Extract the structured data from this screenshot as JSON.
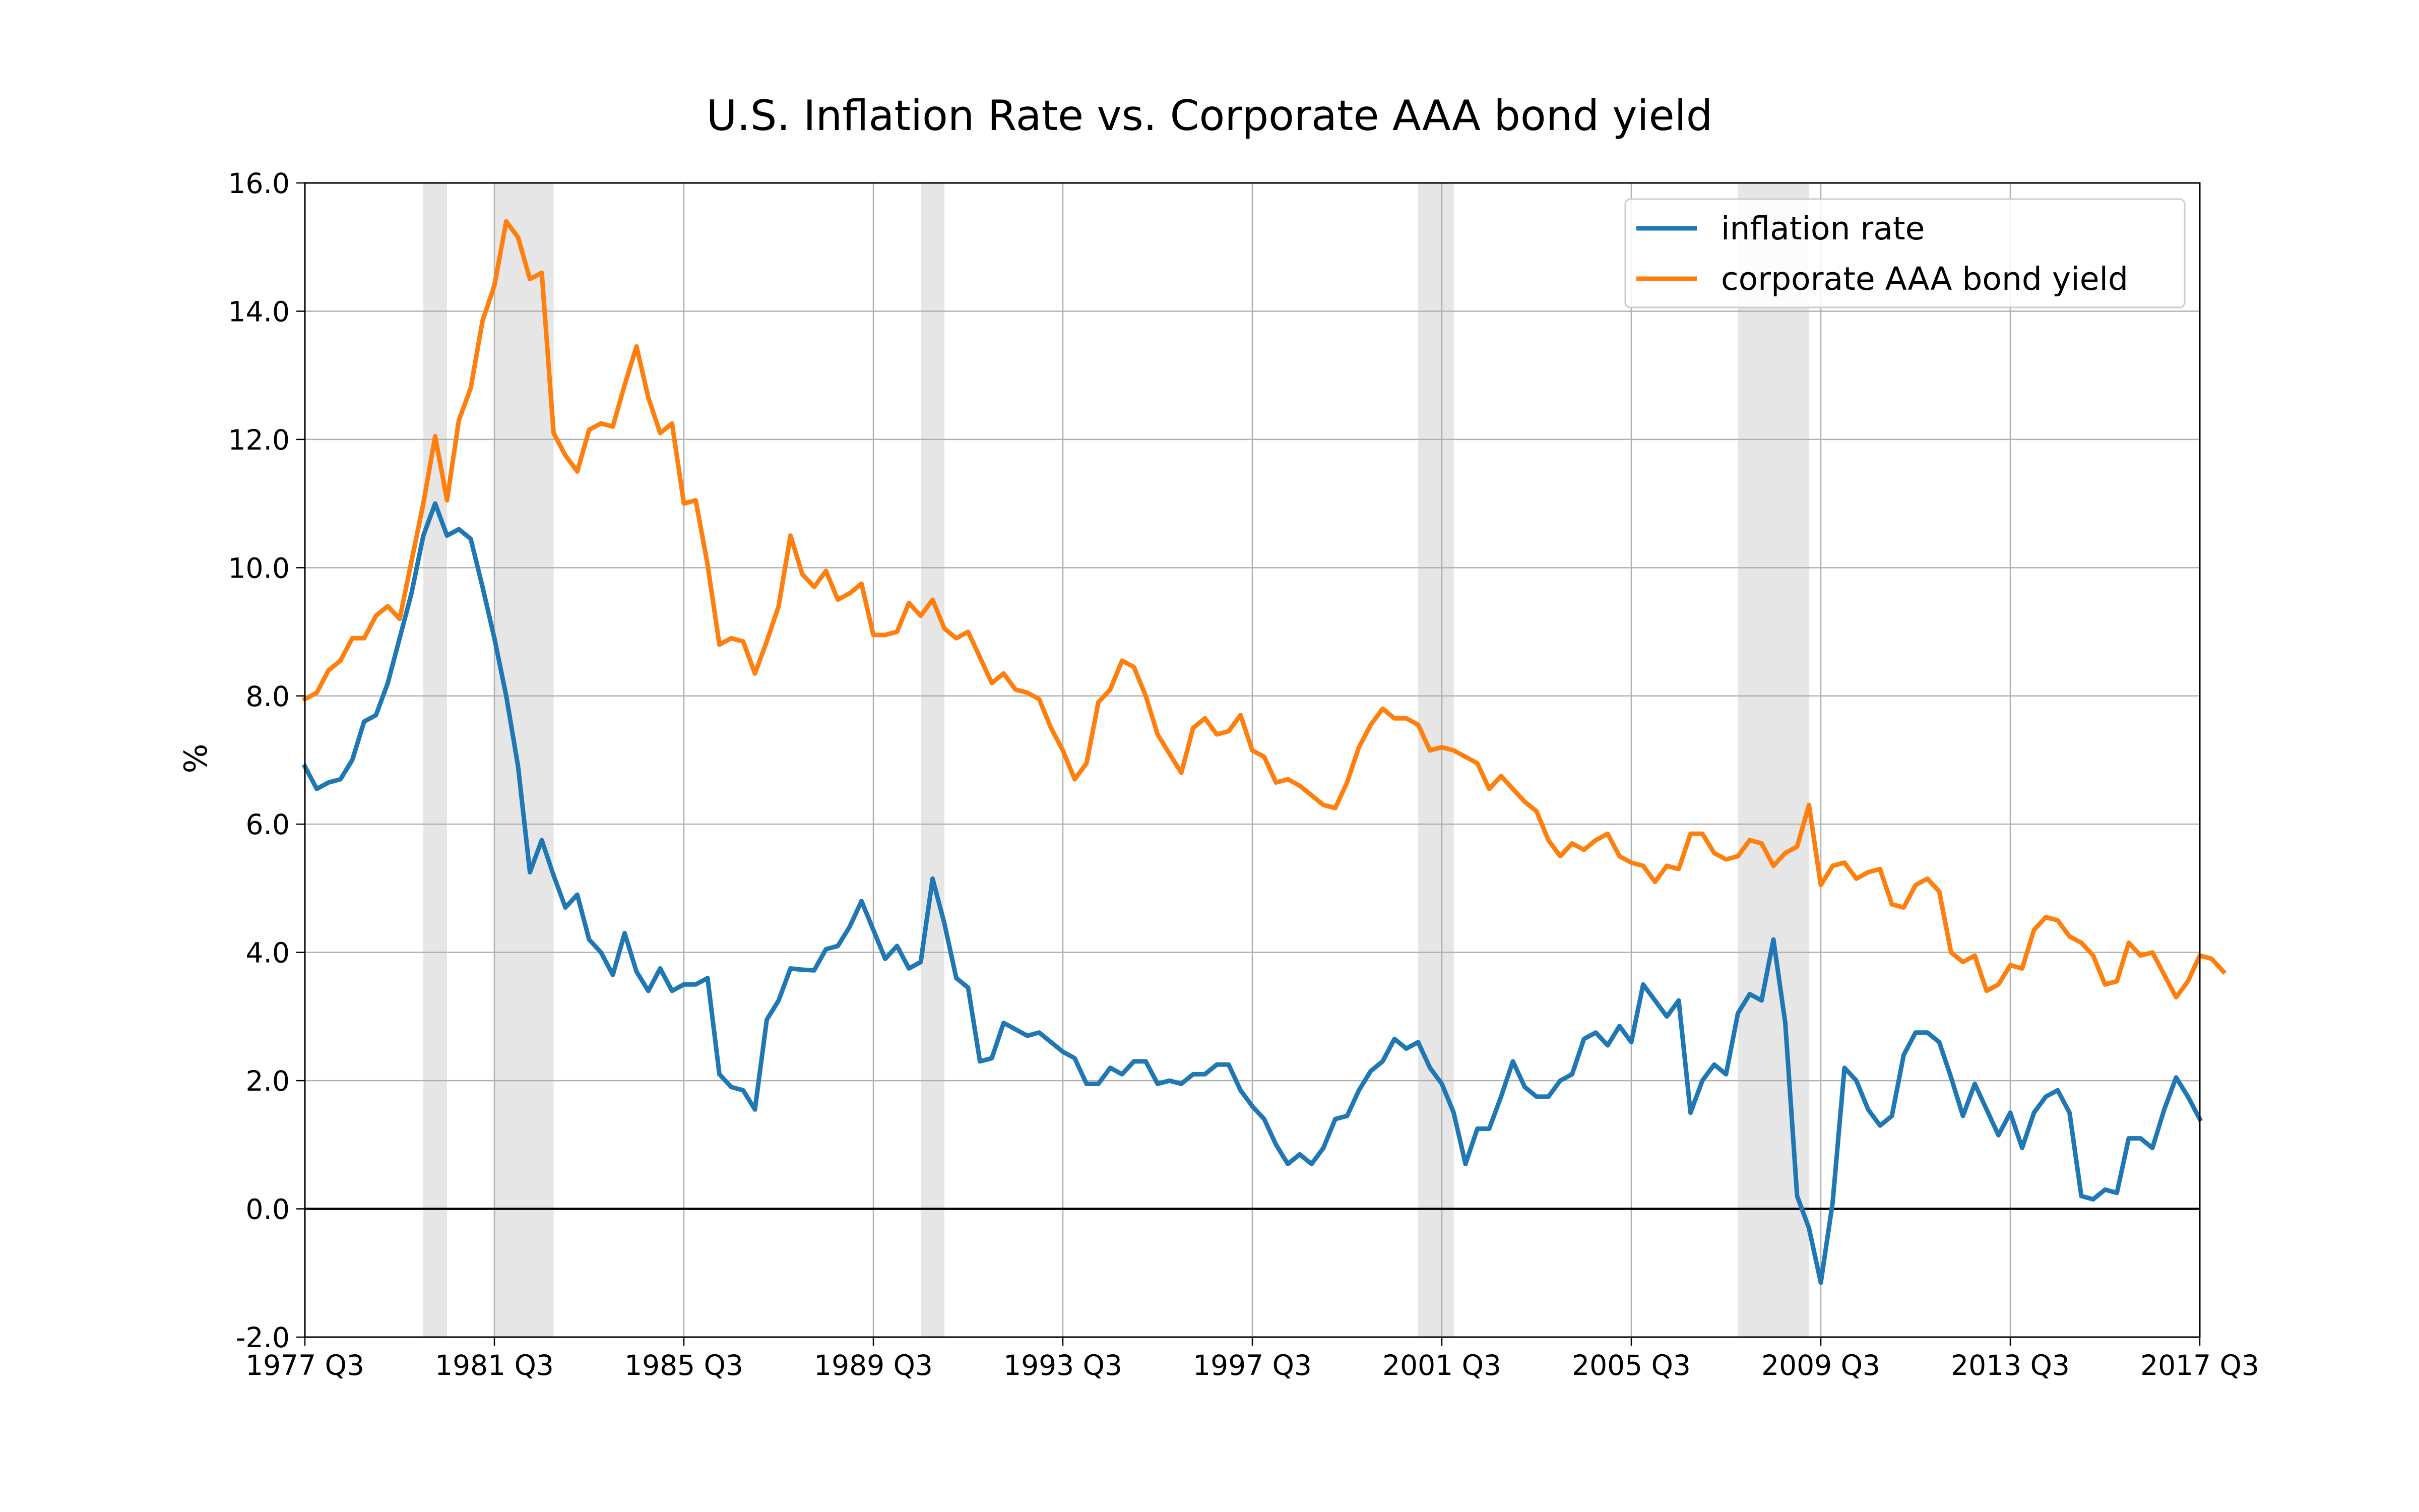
{
  "chart_data": {
    "type": "line",
    "title": "U.S. Inflation Rate vs. Corporate AAA bond yield",
    "xlabel": "",
    "ylabel": "%",
    "ylim": [
      -2.0,
      16.0
    ],
    "yticks": [
      "-2.0",
      "0.0",
      "2.0",
      "4.0",
      "6.0",
      "8.0",
      "10.0",
      "12.0",
      "14.0",
      "16.0"
    ],
    "xtick_labels": [
      "1977 Q3",
      "1981 Q3",
      "1985 Q3",
      "1989 Q3",
      "1993 Q3",
      "1997 Q3",
      "2001 Q3",
      "2005 Q3",
      "2009 Q3",
      "2013 Q3",
      "2017 Q3"
    ],
    "x_start": "1977 Q3",
    "x_end": "2017 Q3",
    "grid": true,
    "legend": "top-right",
    "zero_line": 0,
    "recession_shading": [
      [
        "1980 Q1",
        "1980 Q3"
      ],
      [
        "1981 Q3",
        "1982 Q4"
      ],
      [
        "1990 Q3",
        "1991 Q1"
      ],
      [
        "2001 Q1",
        "2001 Q4"
      ],
      [
        "2007 Q4",
        "2009 Q2"
      ]
    ],
    "colors": {
      "shading": "#e6e6e6",
      "grid": "#b0b0b0",
      "axis": "#000000",
      "background": "#ffffff"
    },
    "series": [
      {
        "name": "inflation rate",
        "color": "#1f77b4",
        "values": [
          6.9,
          6.55,
          6.65,
          6.7,
          7.0,
          7.6,
          7.7,
          8.2,
          8.9,
          9.6,
          10.5,
          11.0,
          10.5,
          10.6,
          10.45,
          9.7,
          8.9,
          8.0,
          6.9,
          5.25,
          5.75,
          5.2,
          4.7,
          4.9,
          4.2,
          4.0,
          3.65,
          4.3,
          3.7,
          3.4,
          3.75,
          3.4,
          3.5,
          3.5,
          3.6,
          2.1,
          1.9,
          1.85,
          1.55,
          2.95,
          3.25,
          3.75,
          3.73,
          3.72,
          4.05,
          4.1,
          4.4,
          4.8,
          4.35,
          3.9,
          4.1,
          3.75,
          3.85,
          5.15,
          4.45,
          3.6,
          3.45,
          2.3,
          2.35,
          2.9,
          2.8,
          2.7,
          2.75,
          2.6,
          2.45,
          2.35,
          1.95,
          1.95,
          2.2,
          2.1,
          2.3,
          2.3,
          1.95,
          2.0,
          1.95,
          2.1,
          2.1,
          2.25,
          2.25,
          1.85,
          1.6,
          1.4,
          1.0,
          0.7,
          0.85,
          0.7,
          0.95,
          1.4,
          1.45,
          1.85,
          2.15,
          2.3,
          2.65,
          2.5,
          2.6,
          2.2,
          1.95,
          1.5,
          0.7,
          1.25,
          1.25,
          1.75,
          2.3,
          1.9,
          1.75,
          1.75,
          2.0,
          2.1,
          2.65,
          2.75,
          2.55,
          2.85,
          2.6,
          3.5,
          3.25,
          3.0,
          3.25,
          1.5,
          2.0,
          2.25,
          2.1,
          3.05,
          3.35,
          3.25,
          4.2,
          2.9,
          0.2,
          -0.3,
          -1.15,
          0.1,
          2.2,
          2.0,
          1.55,
          1.3,
          1.45,
          2.4,
          2.75,
          2.75,
          2.6,
          2.05,
          1.45,
          1.95,
          1.55,
          1.15,
          1.5,
          0.95,
          1.5,
          1.75,
          1.85,
          1.5,
          0.2,
          0.15,
          0.3,
          0.25,
          1.1,
          1.1,
          0.95,
          1.55,
          2.05,
          1.75,
          1.4
        ]
      },
      {
        "name": "corporate AAA bond yield",
        "color": "#ff7f0e",
        "values": [
          7.95,
          8.05,
          8.4,
          8.55,
          8.9,
          8.9,
          9.25,
          9.4,
          9.2,
          10.1,
          11.0,
          12.05,
          11.05,
          12.3,
          12.8,
          13.85,
          14.4,
          15.4,
          15.15,
          14.5,
          14.6,
          12.1,
          11.75,
          11.5,
          12.15,
          12.25,
          12.2,
          12.85,
          13.45,
          12.65,
          12.1,
          12.25,
          11.0,
          11.05,
          10.05,
          8.8,
          8.9,
          8.85,
          8.35,
          8.85,
          9.4,
          10.5,
          9.9,
          9.7,
          9.95,
          9.5,
          9.6,
          9.75,
          8.95,
          8.95,
          9.0,
          9.45,
          9.25,
          9.5,
          9.05,
          8.9,
          9.0,
          8.6,
          8.2,
          8.35,
          8.1,
          8.05,
          7.95,
          7.5,
          7.15,
          6.7,
          6.95,
          7.9,
          8.1,
          8.55,
          8.45,
          8.0,
          7.4,
          7.1,
          6.8,
          7.5,
          7.65,
          7.4,
          7.45,
          7.7,
          7.15,
          7.05,
          6.65,
          6.7,
          6.6,
          6.45,
          6.3,
          6.25,
          6.65,
          7.2,
          7.55,
          7.8,
          7.65,
          7.65,
          7.55,
          7.15,
          7.2,
          7.15,
          7.05,
          6.95,
          6.55,
          6.75,
          6.55,
          6.35,
          6.2,
          5.75,
          5.5,
          5.7,
          5.6,
          5.75,
          5.85,
          5.5,
          5.4,
          5.35,
          5.1,
          5.35,
          5.3,
          5.85,
          5.85,
          5.55,
          5.45,
          5.5,
          5.75,
          5.7,
          5.35,
          5.55,
          5.65,
          6.3,
          5.05,
          5.35,
          5.4,
          5.15,
          5.25,
          5.3,
          4.75,
          4.7,
          5.05,
          5.15,
          4.95,
          4.0,
          3.85,
          3.95,
          3.4,
          3.5,
          3.8,
          3.75,
          4.35,
          4.55,
          4.5,
          4.25,
          4.15,
          3.95,
          3.5,
          3.55,
          4.15,
          3.95,
          4.0,
          3.65,
          3.3,
          3.55,
          3.95,
          3.9,
          3.7
        ]
      }
    ]
  }
}
